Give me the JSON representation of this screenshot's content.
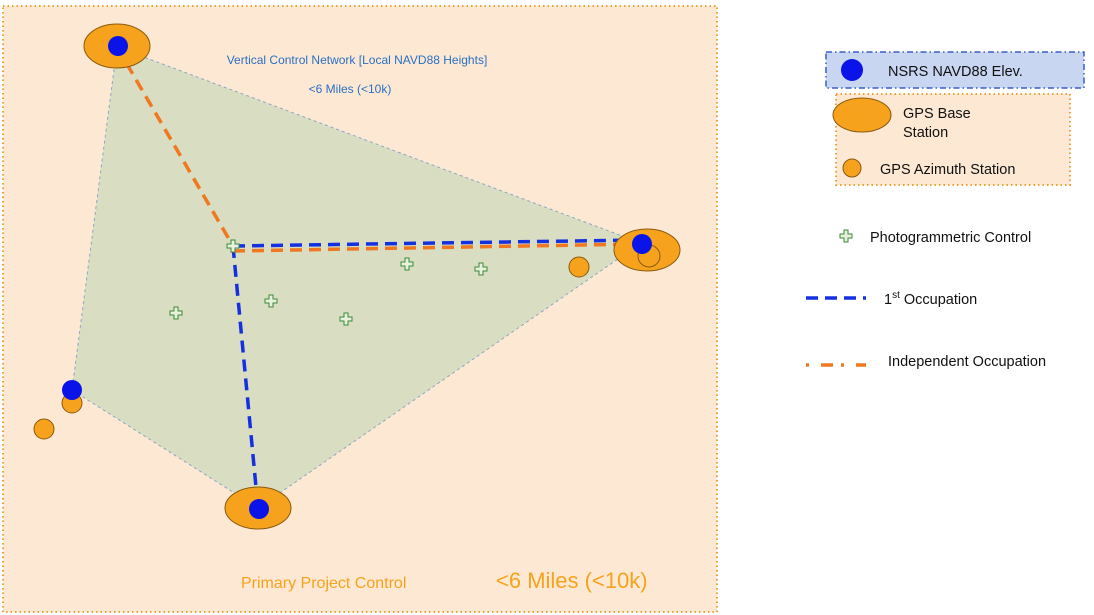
{
  "colors": {
    "project_area_fill": "#fde9d3",
    "project_area_border": "#f0a030",
    "network_fill": "#d9ddc1",
    "network_edge": "#8ba6c6",
    "nsrs_point": "#0a14e8",
    "gps_station": "#f7a21c",
    "gps_station_outline": "#8a5a10",
    "first_occupation": "#1530e0",
    "independent_occupation": "#f07820",
    "network_label": "#2a6fc4",
    "project_label": "#f7a21c",
    "photo_control": "#3a8a3a"
  },
  "labels": {
    "network_title": "Vertical Control Network [Local NAVD88 Heights]",
    "network_range": "<6 Miles (<10k)",
    "project_title": "Primary Project Control",
    "project_range": "<6 Miles (<10k)"
  },
  "legend": {
    "nsrs": "NSRS NAVD88 Elev.",
    "gps_base_line1": "GPS Base",
    "gps_base_line2": "Station",
    "gps_azimuth": "GPS Azimuth Station",
    "photo_control": "Photogrammetric Control",
    "first_occ_prefix": "1",
    "first_occ_sup": "st",
    "first_occ_suffix": " Occupation",
    "independent_occ": "Independent Occupation"
  },
  "icons": {
    "photo_control": "cross-icon",
    "nsrs": "filled-circle-icon",
    "gps_base": "ellipse-icon",
    "gps_azimuth": "small-circle-icon"
  }
}
